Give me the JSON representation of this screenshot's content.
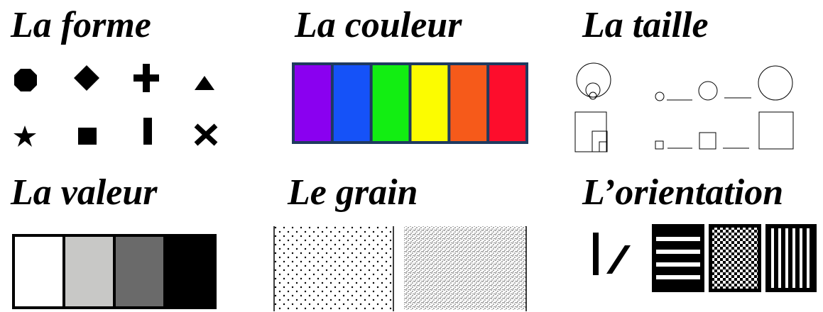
{
  "titles": {
    "forme": "La forme",
    "couleur": "La couleur",
    "taille": "La taille",
    "valeur": "La valeur",
    "grain": "Le grain",
    "orientation": "L’orientation"
  },
  "couleur": {
    "frame": "#1f3a5f",
    "swatches": [
      "#8a00f0",
      "#1552f8",
      "#12ee12",
      "#fcfc00",
      "#f65a1a",
      "#fd0d2c"
    ]
  },
  "valeur": {
    "frame": "#000000",
    "swatches": [
      "#ffffff",
      "#c8c8c6",
      "#6a6a6a",
      "#000000"
    ]
  },
  "forme": {
    "icons": [
      "octagon-icon",
      "diamond-icon",
      "plus-icon",
      "triangle-icon",
      "star-icon",
      "square-icon",
      "bar-icon",
      "cross-icon"
    ]
  },
  "orientation": {
    "icons": [
      "vertical-line-icon",
      "slanted-line-icon",
      "horizontal-stripes-icon",
      "checker-pattern-icon",
      "vertical-stripes-icon"
    ]
  }
}
